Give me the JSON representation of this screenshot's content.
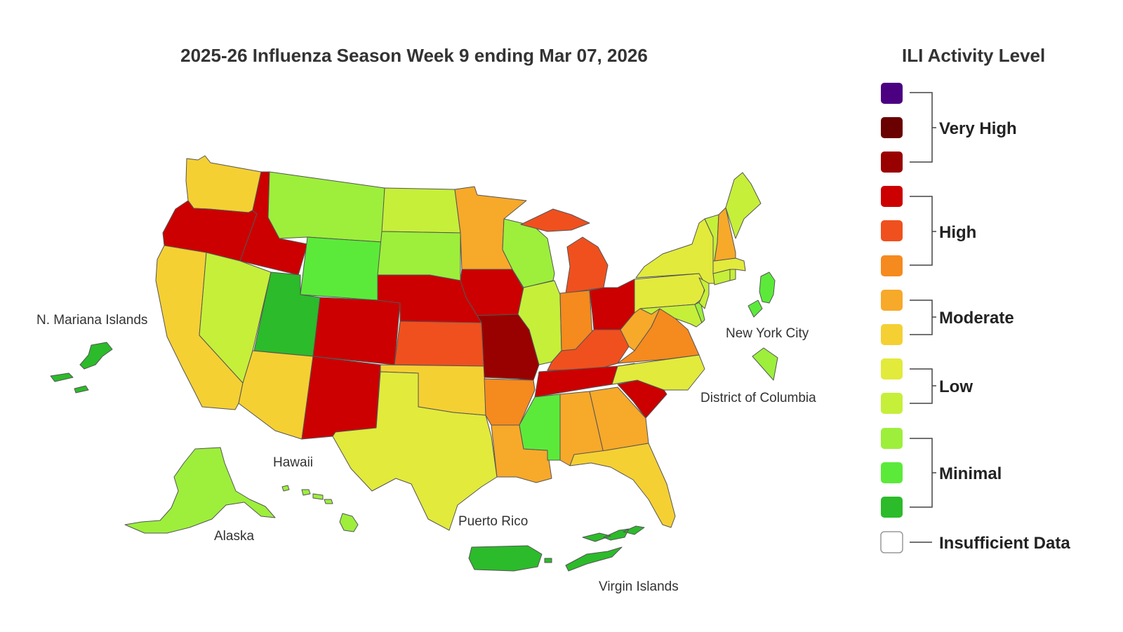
{
  "title": "2025-26 Influenza Season Week 9 ending Mar 07, 2026",
  "legend": {
    "title": "ILI Activity Level",
    "swatches": [
      {
        "level": 13,
        "color": "#4b0082"
      },
      {
        "level": 12,
        "color": "#6a0000"
      },
      {
        "level": 11,
        "color": "#990000"
      },
      {
        "level": 10,
        "color": "#cc0000"
      },
      {
        "level": 9,
        "color": "#f0501e"
      },
      {
        "level": 8,
        "color": "#f58a1f"
      },
      {
        "level": 7,
        "color": "#f7a92a"
      },
      {
        "level": 6,
        "color": "#f5d033"
      },
      {
        "level": 5,
        "color": "#e2ea3c"
      },
      {
        "level": 4,
        "color": "#c6ef3a"
      },
      {
        "level": 3,
        "color": "#9def3c"
      },
      {
        "level": 2,
        "color": "#5cea3a"
      },
      {
        "level": 1,
        "color": "#2cbb2a"
      },
      {
        "level": 0,
        "color": "#ffffff"
      }
    ],
    "groups": [
      {
        "label": "Very High"
      },
      {
        "label": "High"
      },
      {
        "label": "Moderate"
      },
      {
        "label": "Low"
      },
      {
        "label": "Minimal"
      },
      {
        "label": "Insufficient Data"
      }
    ]
  },
  "labels": {
    "n_mariana": "N. Mariana Islands",
    "hawaii": "Hawaii",
    "alaska": "Alaska",
    "puerto_rico": "Puerto Rico",
    "virgin_islands": "Virgin Islands",
    "nyc": "New York City",
    "dc": "District of Columbia"
  },
  "regions": [
    {
      "name": "Washington",
      "level": 6
    },
    {
      "name": "Oregon",
      "level": 10
    },
    {
      "name": "California",
      "level": 6
    },
    {
      "name": "Idaho",
      "level": 10
    },
    {
      "name": "Nevada",
      "level": 4
    },
    {
      "name": "Montana",
      "level": 3
    },
    {
      "name": "Wyoming",
      "level": 2
    },
    {
      "name": "Utah",
      "level": 1
    },
    {
      "name": "Arizona",
      "level": 6
    },
    {
      "name": "Colorado",
      "level": 10
    },
    {
      "name": "New Mexico",
      "level": 10
    },
    {
      "name": "North Dakota",
      "level": 4
    },
    {
      "name": "South Dakota",
      "level": 3
    },
    {
      "name": "Nebraska",
      "level": 10
    },
    {
      "name": "Kansas",
      "level": 9
    },
    {
      "name": "Oklahoma",
      "level": 6
    },
    {
      "name": "Texas",
      "level": 5
    },
    {
      "name": "Minnesota",
      "level": 7
    },
    {
      "name": "Iowa",
      "level": 10
    },
    {
      "name": "Missouri",
      "level": 11
    },
    {
      "name": "Arkansas",
      "level": 8
    },
    {
      "name": "Louisiana",
      "level": 7
    },
    {
      "name": "Wisconsin",
      "level": 3
    },
    {
      "name": "Illinois",
      "level": 4
    },
    {
      "name": "Michigan",
      "level": 9
    },
    {
      "name": "Indiana",
      "level": 8
    },
    {
      "name": "Ohio",
      "level": 10
    },
    {
      "name": "Kentucky",
      "level": 9
    },
    {
      "name": "Tennessee",
      "level": 10
    },
    {
      "name": "Mississippi",
      "level": 2
    },
    {
      "name": "Alabama",
      "level": 7
    },
    {
      "name": "Georgia",
      "level": 7
    },
    {
      "name": "Florida",
      "level": 6
    },
    {
      "name": "South Carolina",
      "level": 10
    },
    {
      "name": "North Carolina",
      "level": 5
    },
    {
      "name": "Virginia",
      "level": 8
    },
    {
      "name": "West Virginia",
      "level": 7
    },
    {
      "name": "Pennsylvania",
      "level": 5
    },
    {
      "name": "New York",
      "level": 5
    },
    {
      "name": "Maryland",
      "level": 4
    },
    {
      "name": "Delaware",
      "level": 3
    },
    {
      "name": "New Jersey",
      "level": 4
    },
    {
      "name": "Connecticut",
      "level": 4
    },
    {
      "name": "Rhode Island",
      "level": 4
    },
    {
      "name": "Massachusetts",
      "level": 5
    },
    {
      "name": "Vermont",
      "level": 4
    },
    {
      "name": "New Hampshire",
      "level": 7
    },
    {
      "name": "Maine",
      "level": 4
    },
    {
      "name": "Alaska",
      "level": 3
    },
    {
      "name": "Hawaii",
      "level": 3
    },
    {
      "name": "N. Mariana Islands",
      "level": 1
    },
    {
      "name": "Puerto Rico",
      "level": 1
    },
    {
      "name": "Virgin Islands",
      "level": 1
    },
    {
      "name": "New York City",
      "level": 2
    },
    {
      "name": "District of Columbia",
      "level": 3
    }
  ]
}
